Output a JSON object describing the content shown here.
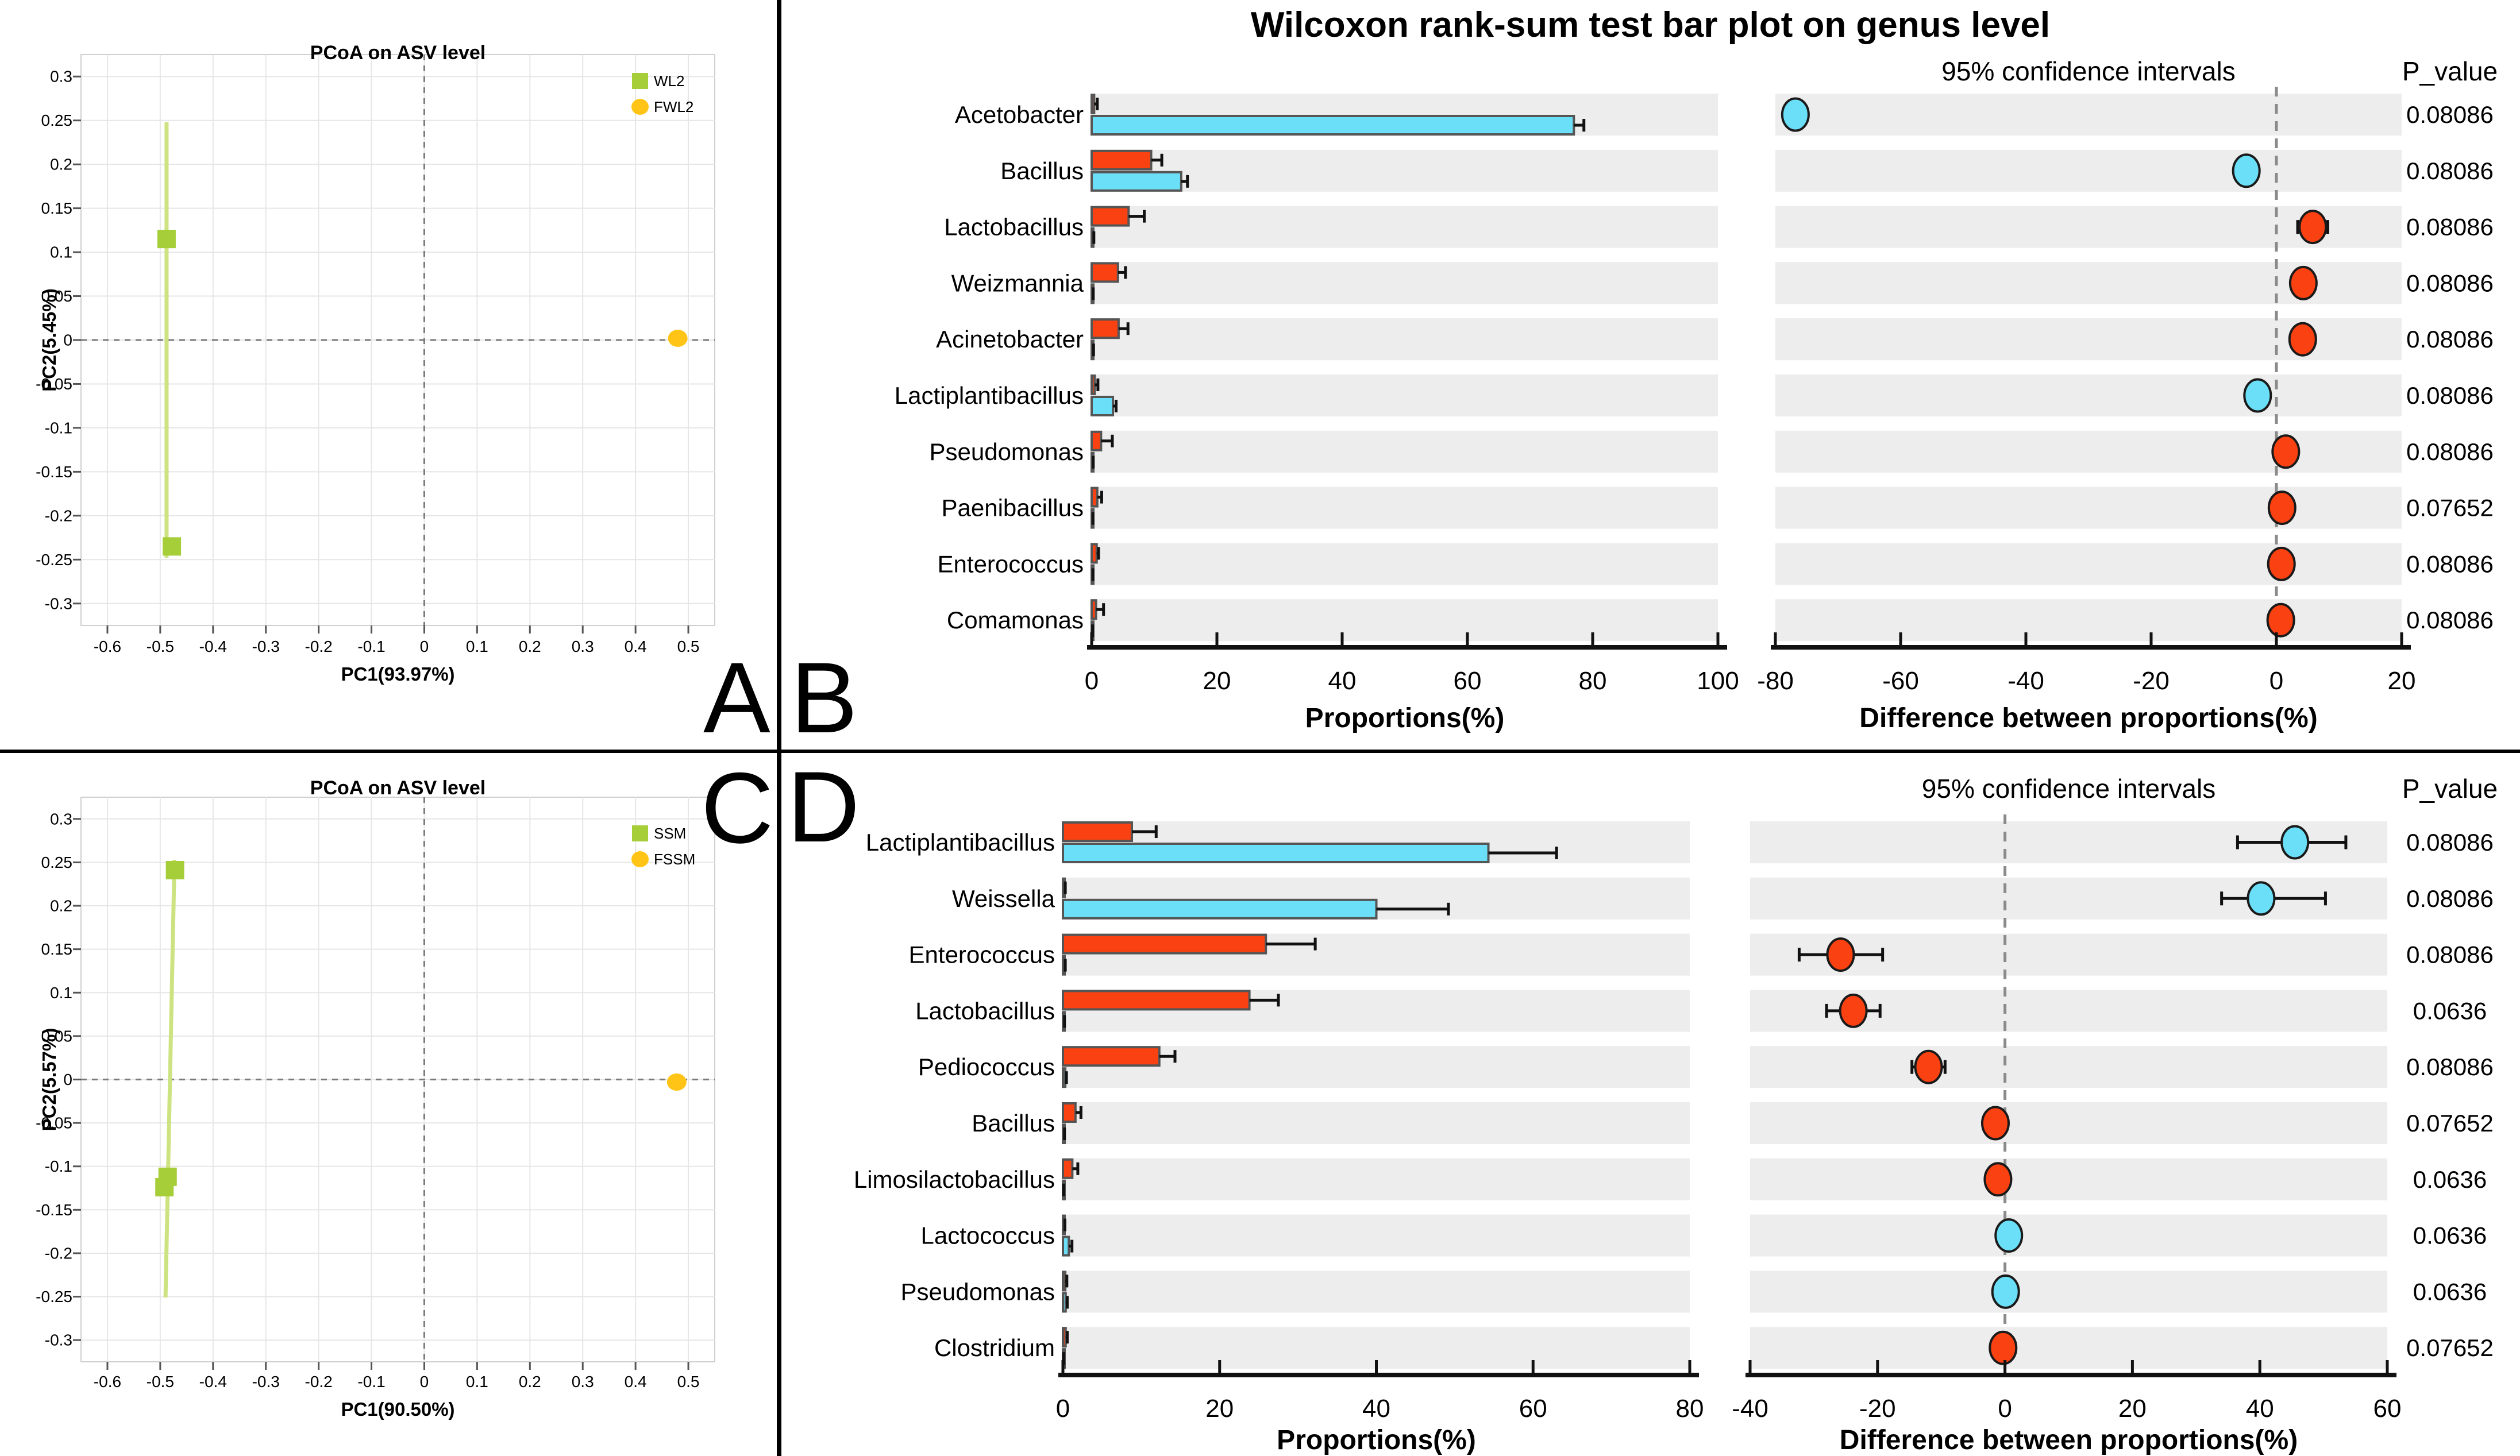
{
  "panel_labels": [
    "A",
    "B",
    "C",
    "D"
  ],
  "colors": {
    "red": "#F94111",
    "cyan": "#6BDFF7",
    "stripe": "#EDEDED",
    "bar_border": "#555555",
    "dot_border": "#1a1a1a",
    "green": "#A6CE39",
    "green_line": "#CDE381",
    "yellow": "#FFC415",
    "dash_zero": "#8A8A8A",
    "axis": "#111111",
    "grid": "#E6E6E6",
    "frame": "#D0D0D0"
  },
  "chart_data": [
    {
      "type": "scatter",
      "panel": "A",
      "title": "PCoA on ASV level",
      "xlabel": "PC1(93.97%)",
      "ylabel": "PC2(5.45%)",
      "xlim": [
        -0.65,
        0.55
      ],
      "ylim": [
        -0.325,
        0.325
      ],
      "x_ticks": [
        -0.6,
        -0.5,
        -0.4,
        -0.3,
        -0.2,
        -0.1,
        0,
        0.1,
        0.2,
        0.3,
        0.4,
        0.5
      ],
      "y_ticks": [
        0.3,
        0.25,
        0.2,
        0.15,
        0.1,
        0.05,
        0,
        -0.05,
        -0.1,
        -0.15,
        -0.2,
        -0.25,
        -0.3
      ],
      "zero_lines": true,
      "grid": true,
      "legend": [
        {
          "label": "WL2",
          "shape": "square",
          "color": "#A6CE39"
        },
        {
          "label": "FWL2",
          "shape": "circle",
          "color": "#FFC415"
        }
      ],
      "error_line": {
        "x1": -0.488,
        "y1": 0.248,
        "x2": -0.488,
        "y2": -0.248
      },
      "points": [
        {
          "x": -0.488,
          "y": 0.115,
          "shape": "square",
          "group": "WL2"
        },
        {
          "x": -0.478,
          "y": -0.235,
          "shape": "square",
          "group": "WL2"
        },
        {
          "x": 0.48,
          "y": 0.002,
          "shape": "circle",
          "group": "FWL2"
        }
      ]
    },
    {
      "type": "bar",
      "panel": "B",
      "title": "Wilcoxon rank-sum test bar plot on genus level",
      "ci_title": "95% confidence intervals",
      "pvalue_title": "P_value",
      "prop_xlabel": "Proportions(%)",
      "diff_xlabel": "Difference between proportions(%)",
      "prop_range": [
        0,
        100
      ],
      "prop_ticks": [
        0,
        20,
        40,
        60,
        80,
        100
      ],
      "diff_range": [
        -80,
        20
      ],
      "diff_ticks": [
        -80,
        -60,
        -40,
        -20,
        0,
        20
      ],
      "rows": [
        {
          "genus": "Acetobacter",
          "red": 0.4,
          "red_err": 0.9,
          "cyan": 77.0,
          "cyan_err": 78.6,
          "diff": -76.8,
          "diff_lo": -78.2,
          "diff_hi": -75.4,
          "dot": "cyan",
          "p": "0.08086"
        },
        {
          "genus": "Bacillus",
          "red": 9.5,
          "red_err": 11.2,
          "cyan": 14.3,
          "cyan_err": 15.3,
          "diff": -4.8,
          "diff_lo": -5.9,
          "diff_hi": -3.7,
          "dot": "cyan",
          "p": "0.08086"
        },
        {
          "genus": "Lactobacillus",
          "red": 5.9,
          "red_err": 8.4,
          "cyan": 0.2,
          "cyan_err": 0.35,
          "diff": 5.8,
          "diff_lo": 3.4,
          "diff_hi": 8.2,
          "dot": "red",
          "p": "0.08086"
        },
        {
          "genus": "Weizmannia",
          "red": 4.2,
          "red_err": 5.4,
          "cyan": 0.15,
          "cyan_err": 0.25,
          "diff": 4.3,
          "diff_lo": 3.2,
          "diff_hi": 5.4,
          "dot": "red",
          "p": "0.08086"
        },
        {
          "genus": "Acinetobacter",
          "red": 4.3,
          "red_err": 5.8,
          "cyan": 0.2,
          "cyan_err": 0.3,
          "diff": 4.2,
          "diff_lo": 2.9,
          "diff_hi": 5.5,
          "dot": "red",
          "p": "0.08086"
        },
        {
          "genus": "Lactiplantibacillus",
          "red": 0.5,
          "red_err": 1.0,
          "cyan": 3.4,
          "cyan_err": 3.9,
          "diff": -3.0,
          "diff_lo": -3.8,
          "diff_hi": -2.2,
          "dot": "cyan",
          "p": "0.08086"
        },
        {
          "genus": "Pseudomonas",
          "red": 1.5,
          "red_err": 3.3,
          "cyan": 0.15,
          "cyan_err": 0.25,
          "diff": 1.5,
          "diff_lo": -0.2,
          "diff_hi": 3.2,
          "dot": "red",
          "p": "0.08086"
        },
        {
          "genus": "Paenibacillus",
          "red": 0.9,
          "red_err": 1.6,
          "cyan": 0.1,
          "cyan_err": 0.2,
          "diff": 0.9,
          "diff_lo": 0.2,
          "diff_hi": 1.6,
          "dot": "red",
          "p": "0.07652"
        },
        {
          "genus": "Enterococcus",
          "red": 0.8,
          "red_err": 1.1,
          "cyan": 0.1,
          "cyan_err": 0.2,
          "diff": 0.8,
          "diff_lo": 0.3,
          "diff_hi": 1.3,
          "dot": "red",
          "p": "0.08086"
        },
        {
          "genus": "Comamonas",
          "red": 0.7,
          "red_err": 1.9,
          "cyan": 0.1,
          "cyan_err": 0.15,
          "diff": 0.7,
          "diff_lo": -0.5,
          "diff_hi": 1.9,
          "dot": "red",
          "p": "0.08086"
        }
      ]
    },
    {
      "type": "scatter",
      "panel": "C",
      "title": "PCoA on ASV level",
      "xlabel": "PC1(90.50%)",
      "ylabel": "PC2(5.57%)",
      "xlim": [
        -0.65,
        0.55
      ],
      "ylim": [
        -0.325,
        0.325
      ],
      "x_ticks": [
        -0.6,
        -0.5,
        -0.4,
        -0.3,
        -0.2,
        -0.1,
        0,
        0.1,
        0.2,
        0.3,
        0.4,
        0.5
      ],
      "y_ticks": [
        0.3,
        0.25,
        0.2,
        0.15,
        0.1,
        0.05,
        0,
        -0.05,
        -0.1,
        -0.15,
        -0.2,
        -0.25,
        -0.3
      ],
      "zero_lines": true,
      "grid": true,
      "legend": [
        {
          "label": "SSM",
          "shape": "square",
          "color": "#A6CE39"
        },
        {
          "label": "FSSM",
          "shape": "circle",
          "color": "#FFC415"
        }
      ],
      "error_line": {
        "x1": -0.473,
        "y1": 0.253,
        "x2": -0.49,
        "y2": -0.251
      },
      "points": [
        {
          "x": -0.472,
          "y": 0.241,
          "shape": "square",
          "group": "SSM"
        },
        {
          "x": -0.486,
          "y": -0.112,
          "shape": "square",
          "group": "SSM"
        },
        {
          "x": -0.492,
          "y": -0.124,
          "shape": "square",
          "group": "SSM"
        },
        {
          "x": 0.478,
          "y": -0.003,
          "shape": "circle",
          "group": "FSSM"
        }
      ]
    },
    {
      "type": "bar",
      "panel": "D",
      "title": "",
      "ci_title": "95% confidence intervals",
      "pvalue_title": "P_value",
      "prop_xlabel": "Proportions(%)",
      "diff_xlabel": "Difference between proportions(%)",
      "prop_range": [
        0,
        80
      ],
      "prop_ticks": [
        0,
        20,
        40,
        60,
        80
      ],
      "diff_range": [
        -40,
        60
      ],
      "diff_ticks": [
        -40,
        -20,
        0,
        20,
        40,
        60
      ],
      "rows": [
        {
          "genus": "Lactiplantibacillus",
          "red": 8.8,
          "red_err": 11.9,
          "cyan": 54.3,
          "cyan_err": 63.0,
          "diff": 45.5,
          "diff_lo": 36.5,
          "diff_hi": 53.5,
          "dot": "cyan",
          "p": "0.08086"
        },
        {
          "genus": "Weissella",
          "red": 0.2,
          "red_err": 0.3,
          "cyan": 40.0,
          "cyan_err": 49.2,
          "diff": 40.2,
          "diff_lo": 34.0,
          "diff_hi": 50.3,
          "dot": "cyan",
          "p": "0.08086"
        },
        {
          "genus": "Enterococcus",
          "red": 25.9,
          "red_err": 32.2,
          "cyan": 0.2,
          "cyan_err": 0.3,
          "diff": -25.8,
          "diff_lo": -32.3,
          "diff_hi": -19.2,
          "dot": "red",
          "p": "0.08086"
        },
        {
          "genus": "Lactobacillus",
          "red": 23.8,
          "red_err": 27.5,
          "cyan": 0.1,
          "cyan_err": 0.2,
          "diff": -23.8,
          "diff_lo": -28.0,
          "diff_hi": -19.6,
          "dot": "red",
          "p": "0.0636"
        },
        {
          "genus": "Pediococcus",
          "red": 12.3,
          "red_err": 14.3,
          "cyan": 0.3,
          "cyan_err": 0.45,
          "diff": -12.0,
          "diff_lo": -14.6,
          "diff_hi": -9.4,
          "dot": "red",
          "p": "0.08086"
        },
        {
          "genus": "Bacillus",
          "red": 1.6,
          "red_err": 2.3,
          "cyan": 0.1,
          "cyan_err": 0.2,
          "diff": -1.5,
          "diff_lo": -2.8,
          "diff_hi": -0.2,
          "dot": "red",
          "p": "0.07652"
        },
        {
          "genus": "Limosilactobacillus",
          "red": 1.2,
          "red_err": 1.9,
          "cyan": 0.05,
          "cyan_err": 0.1,
          "diff": -1.1,
          "diff_lo": -2.0,
          "diff_hi": -0.2,
          "dot": "red",
          "p": "0.0636"
        },
        {
          "genus": "Lactococcus",
          "red": 0.15,
          "red_err": 0.25,
          "cyan": 0.75,
          "cyan_err": 1.15,
          "diff": 0.6,
          "diff_lo": 0.1,
          "diff_hi": 1.1,
          "dot": "cyan",
          "p": "0.0636"
        },
        {
          "genus": "Pseudomonas",
          "red": 0.3,
          "red_err": 0.5,
          "cyan": 0.35,
          "cyan_err": 0.55,
          "diff": 0.1,
          "diff_lo": -0.4,
          "diff_hi": 0.6,
          "dot": "cyan",
          "p": "0.0636"
        },
        {
          "genus": "Clostridium",
          "red": 0.35,
          "red_err": 0.55,
          "cyan": 0.05,
          "cyan_err": 0.1,
          "diff": -0.3,
          "diff_lo": -0.8,
          "diff_hi": 0.2,
          "dot": "red",
          "p": "0.07652"
        }
      ]
    }
  ]
}
